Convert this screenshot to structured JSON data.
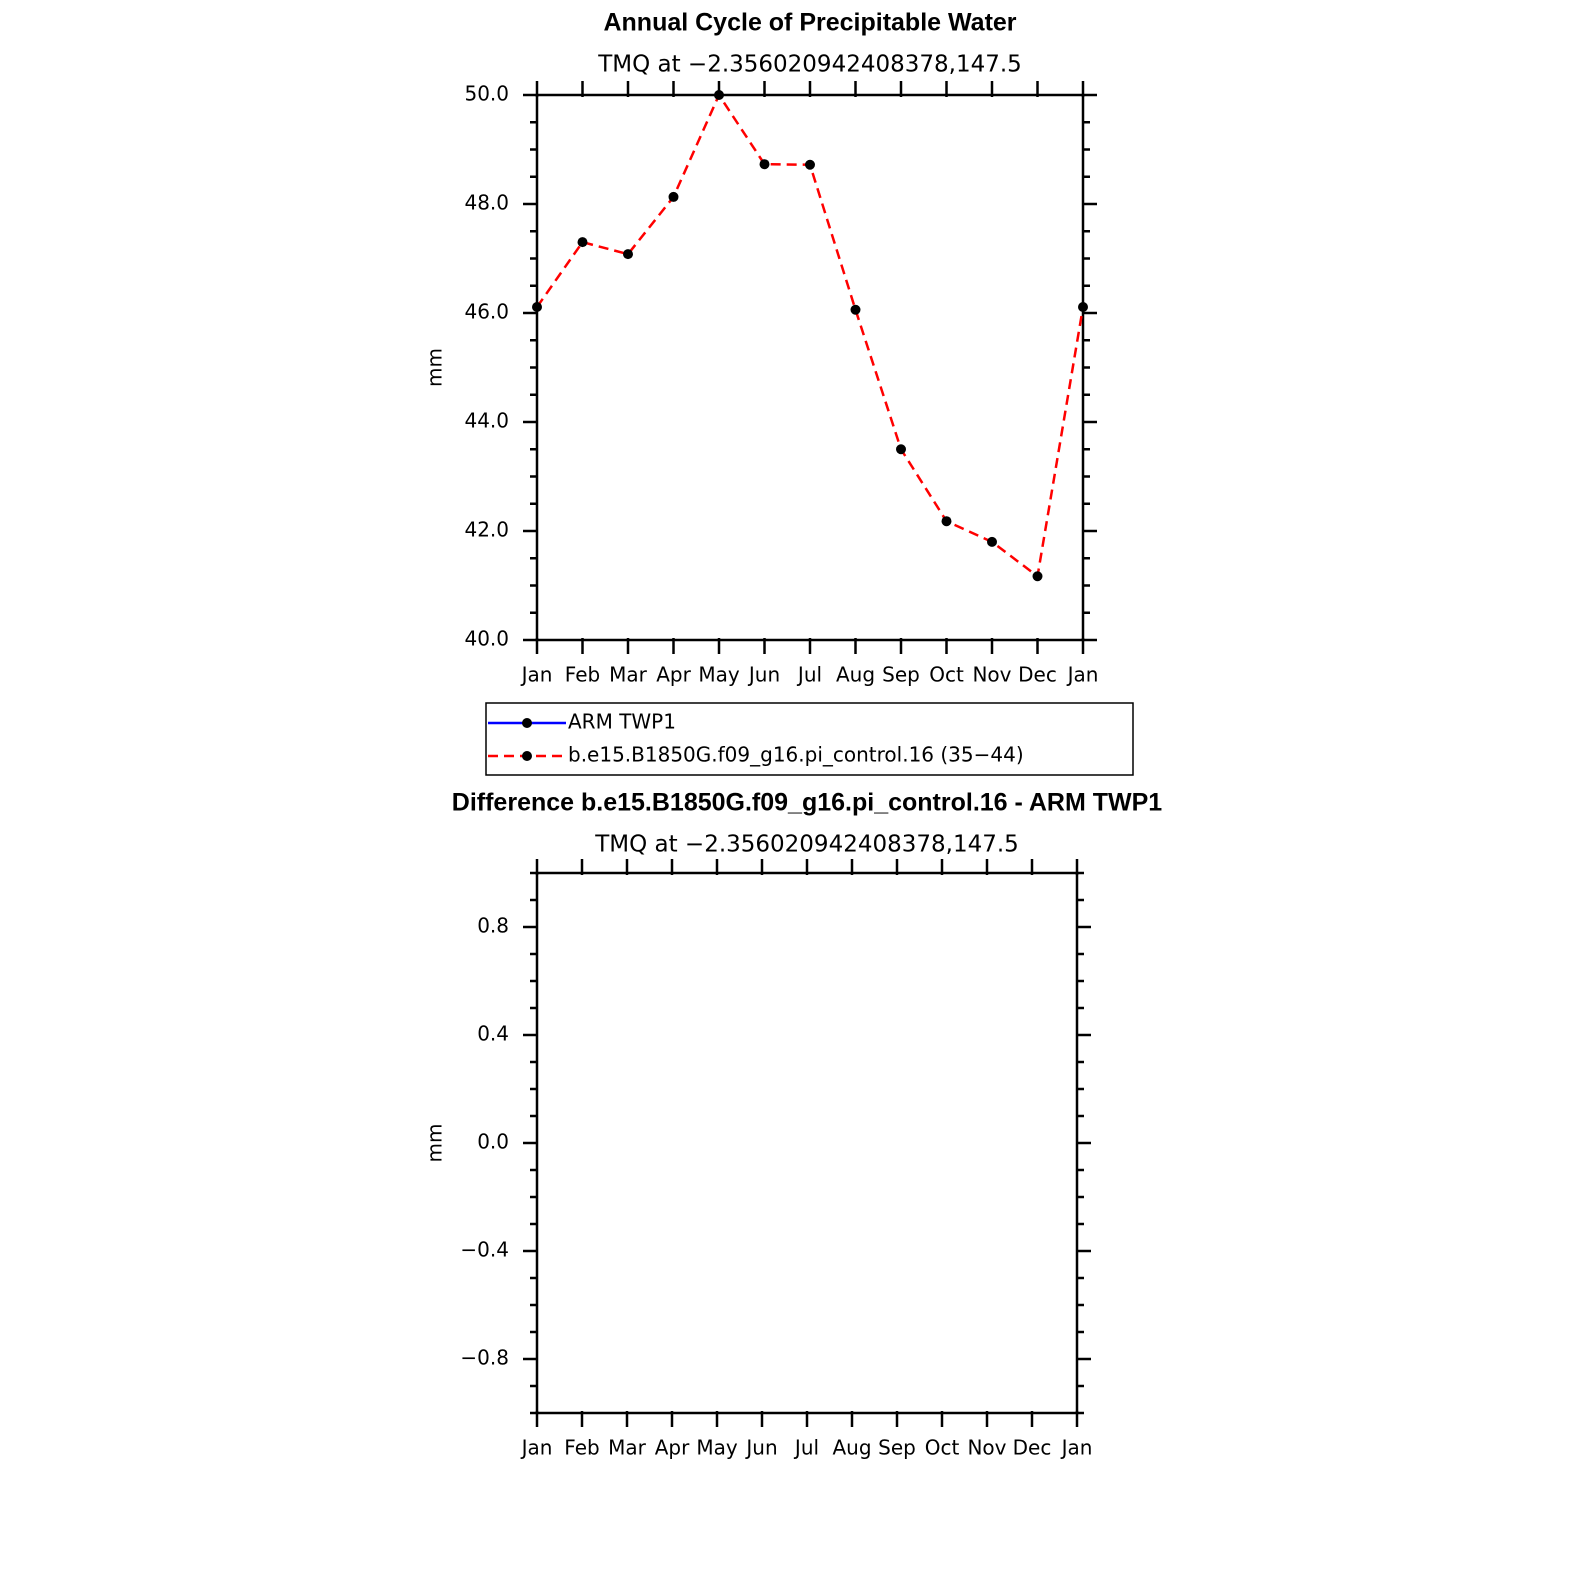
{
  "chart_data": [
    {
      "type": "line",
      "title": "Annual Cycle of Precipitable Water",
      "subtitle": "TMQ at −2.356020942408378,147.5",
      "ylabel": "mm",
      "categories": [
        "Jan",
        "Feb",
        "Mar",
        "Apr",
        "May",
        "Jun",
        "Jul",
        "Aug",
        "Sep",
        "Oct",
        "Nov",
        "Dec",
        "Jan"
      ],
      "series": [
        {
          "name": "ARM TWP1",
          "color": "#0000ff",
          "dashed": false,
          "values": [
            null,
            null,
            null,
            null,
            null,
            null,
            null,
            null,
            null,
            null,
            null,
            null,
            null
          ]
        },
        {
          "name": "b.e15.B1850G.f09_g16.pi_control.16 (35−44)",
          "color": "#ff0000",
          "dashed": true,
          "values": [
            46.11,
            47.3,
            47.08,
            48.13,
            50.0,
            48.73,
            48.72,
            46.06,
            43.5,
            42.18,
            41.8,
            41.17,
            46.11
          ]
        }
      ],
      "ylim": [
        40,
        50
      ],
      "yticks": [
        {
          "value": 40,
          "label": "40.0"
        },
        {
          "value": 42,
          "label": "42.0"
        },
        {
          "value": 44,
          "label": "44.0"
        },
        {
          "value": 46,
          "label": "46.0"
        },
        {
          "value": 48,
          "label": "48.0"
        },
        {
          "value": 50,
          "label": "50.0"
        }
      ],
      "legend": "bottom"
    },
    {
      "type": "line",
      "title": "Difference b.e15.B1850G.f09_g16.pi_control.16 - ARM TWP1",
      "subtitle": "TMQ at −2.356020942408378,147.5",
      "ylabel": "mm",
      "categories": [
        "Jan",
        "Feb",
        "Mar",
        "Apr",
        "May",
        "Jun",
        "Jul",
        "Aug",
        "Sep",
        "Oct",
        "Nov",
        "Dec",
        "Jan"
      ],
      "ylim": [
        -1,
        1
      ],
      "yticks": [
        {
          "value": -0.8,
          "label": "−0.8"
        },
        {
          "value": -0.4,
          "label": "−0.4"
        },
        {
          "value": 0,
          "label": "0.0"
        },
        0.4,
        0.8
      ]
    }
  ]
}
